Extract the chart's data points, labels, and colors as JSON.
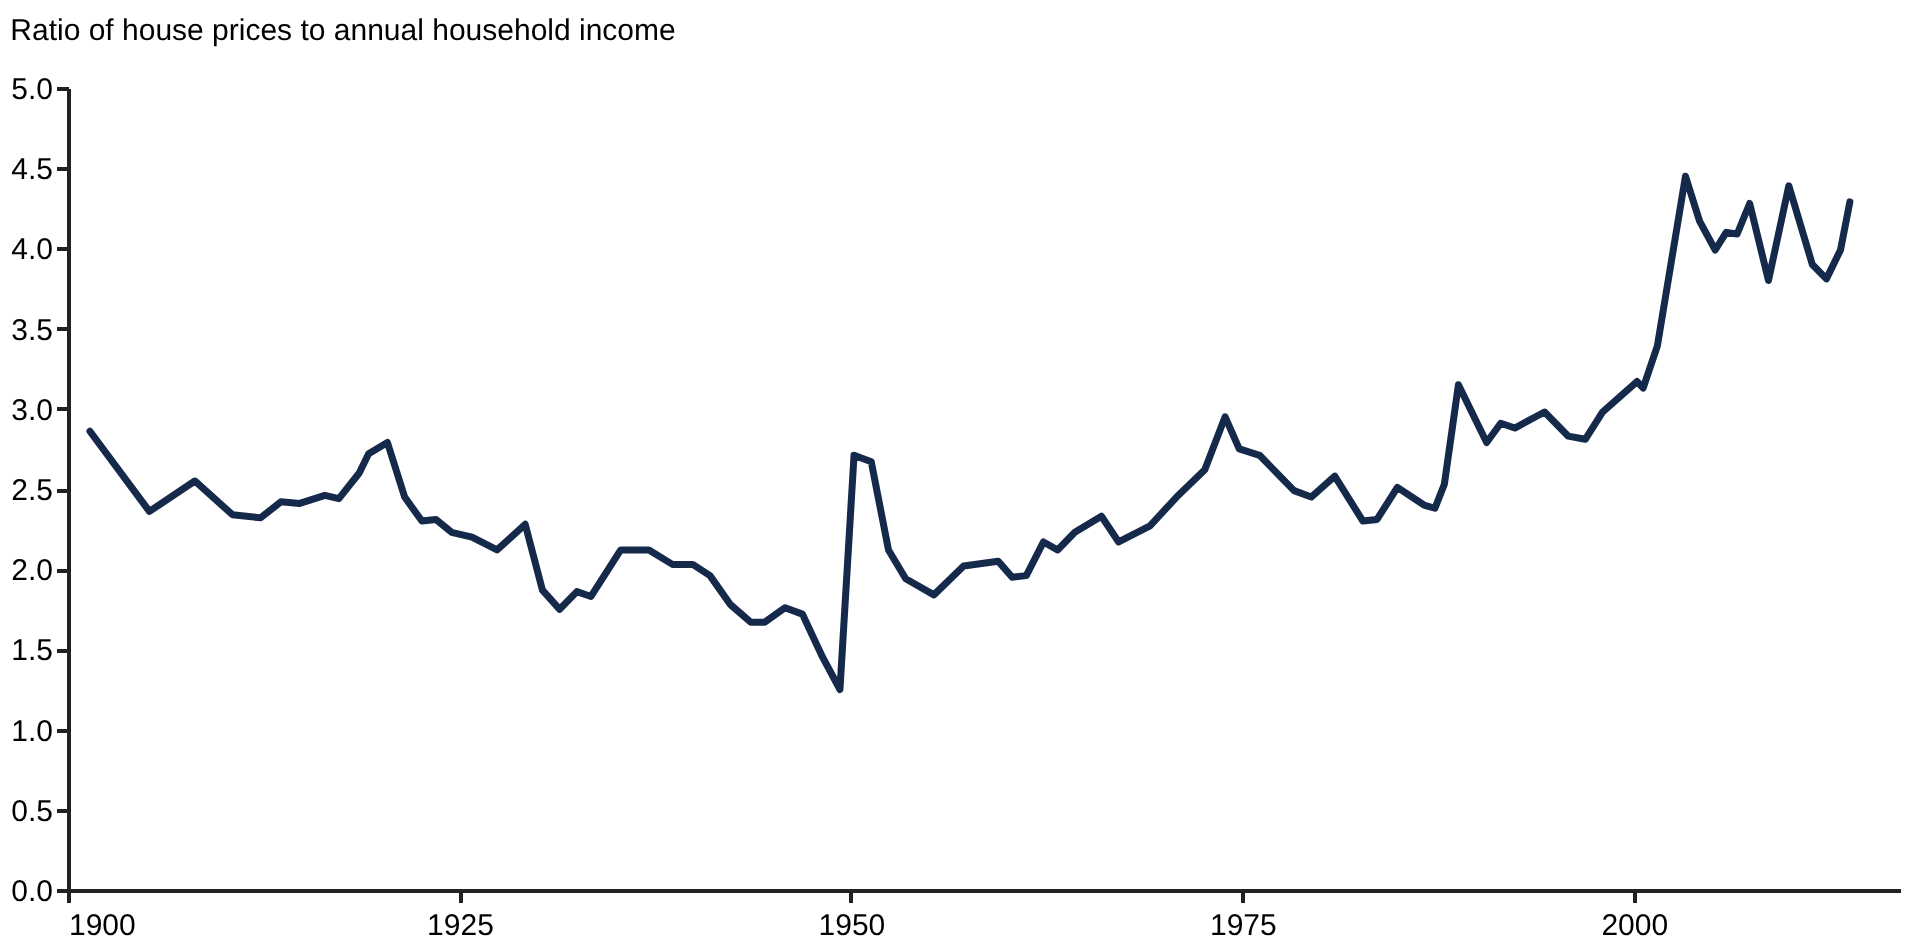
{
  "chart_data": {
    "type": "line",
    "title": "Ratio of house prices to annual household income",
    "x": [
      1901.4,
      1905.2,
      1908.1,
      1910.5,
      1912.3,
      1913.6,
      1914.8,
      1916.4,
      1917.3,
      1918.6,
      1919.2,
      1920.4,
      1921.5,
      1922.6,
      1923.5,
      1924.5,
      1925.8,
      1927.4,
      1929.2,
      1930.3,
      1931.4,
      1932.5,
      1933.4,
      1935.3,
      1937.1,
      1938.6,
      1939.9,
      1941.0,
      1942.3,
      1943.6,
      1944.5,
      1945.8,
      1946.9,
      1948.2,
      1949.3,
      1950.2,
      1951.3,
      1952.4,
      1953.5,
      1955.3,
      1957.2,
      1959.4,
      1960.3,
      1961.2,
      1962.3,
      1963.2,
      1964.3,
      1966.0,
      1967.1,
      1969.1,
      1970.8,
      1972.6,
      1973.9,
      1974.8,
      1976.1,
      1978.3,
      1979.4,
      1980.9,
      1982.7,
      1983.6,
      1984.9,
      1986.6,
      1987.3,
      1987.9,
      1988.8,
      1990.6,
      1991.5,
      1992.4,
      1994.3,
      1995.8,
      1996.9,
      1998.0,
      2000.2,
      2000.6,
      2001.5,
      2002.4,
      2003.3,
      2004.2,
      2005.2,
      2005.9,
      2006.6,
      2007.4,
      2008.6,
      2009.9,
      2011.4,
      2012.3,
      2013.2,
      2013.8
    ],
    "series": [
      {
        "color": "#15294a",
        "values": [
          2.86,
          2.36,
          2.55,
          2.34,
          2.32,
          2.42,
          2.41,
          2.46,
          2.44,
          2.6,
          2.72,
          2.79,
          2.45,
          2.3,
          2.31,
          2.23,
          2.2,
          2.12,
          2.28,
          1.87,
          1.75,
          1.86,
          1.83,
          2.12,
          2.12,
          2.03,
          2.03,
          1.96,
          1.78,
          1.67,
          1.67,
          1.76,
          1.72,
          1.45,
          1.25,
          2.71,
          2.67,
          2.12,
          1.94,
          1.84,
          2.02,
          2.05,
          1.95,
          1.96,
          2.17,
          2.12,
          2.23,
          2.33,
          2.17,
          2.27,
          2.45,
          2.62,
          2.95,
          2.75,
          2.71,
          2.49,
          2.45,
          2.58,
          2.3,
          2.31,
          2.51,
          2.4,
          2.38,
          2.53,
          3.15,
          2.79,
          2.91,
          2.88,
          2.98,
          2.83,
          2.81,
          2.98,
          3.17,
          3.13,
          3.39,
          3.92,
          4.45,
          4.17,
          3.99,
          4.1,
          4.09,
          4.28,
          3.8,
          4.39,
          3.9,
          3.81,
          3.99,
          4.29
        ]
      }
    ],
    "xlim": [
      1900,
      2017
    ],
    "xticks": [
      1900,
      1925,
      1950,
      1975,
      2000
    ],
    "ylim": [
      0,
      5
    ],
    "yticks": [
      {
        "value": 0,
        "label": "0.0"
      },
      0.5,
      {
        "value": 1,
        "label": "1.0"
      },
      1.5,
      {
        "value": 2,
        "label": "2.0"
      },
      2.5,
      {
        "value": 3,
        "label": "3.0"
      },
      3.5,
      {
        "value": 4,
        "label": "4.0"
      },
      4.5,
      {
        "value": 5,
        "label": "5.0"
      }
    ],
    "grid": false,
    "legend": false,
    "line_style": "solid",
    "marker": "none"
  }
}
